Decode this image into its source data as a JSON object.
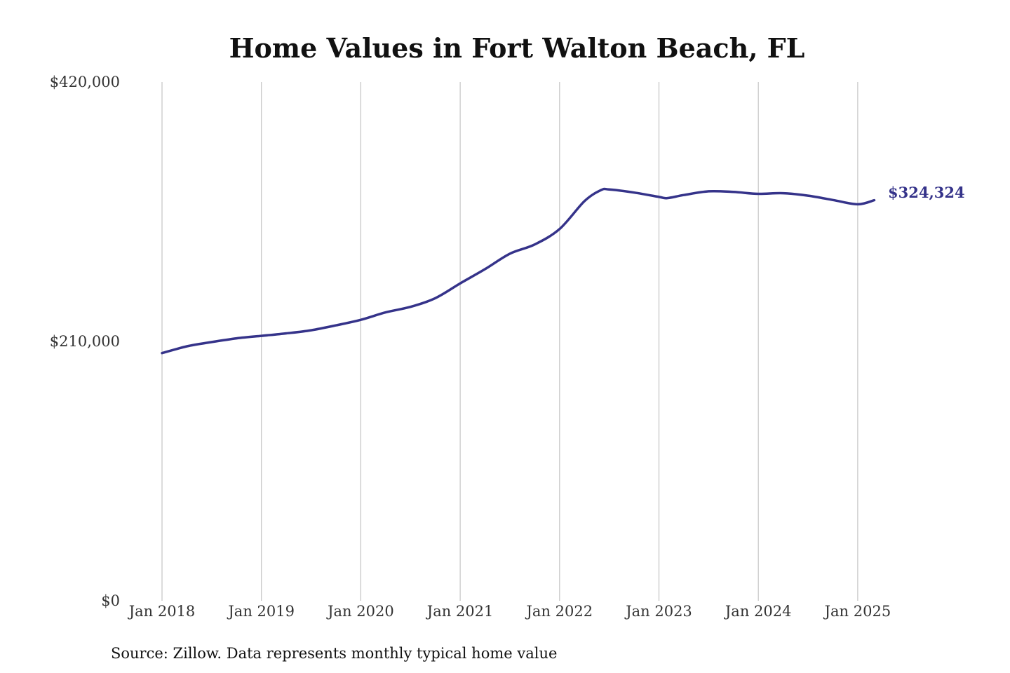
{
  "colors": {
    "line": "#35338a",
    "gridline": "#c4c4c4",
    "text": "#111111"
  },
  "chart_data": {
    "type": "line",
    "title": "Home Values in Fort Walton Beach, FL",
    "subtitle": "",
    "xlabel": "",
    "ylabel": "",
    "ylim": [
      0,
      420000
    ],
    "y_ticks": [
      0,
      210000,
      420000
    ],
    "y_tick_labels": [
      "$0",
      "$210,000",
      "$420,000"
    ],
    "x_ticks": [
      "2018-01",
      "2019-01",
      "2020-01",
      "2021-01",
      "2022-01",
      "2023-01",
      "2024-01",
      "2025-01"
    ],
    "x_tick_labels": [
      "Jan 2018",
      "Jan 2019",
      "Jan 2020",
      "Jan 2021",
      "Jan 2022",
      "Jan 2023",
      "Jan 2024",
      "Jan 2025"
    ],
    "x_range": [
      "2018-01",
      "2025-03"
    ],
    "grid": "vertical",
    "legend": "none",
    "series": [
      {
        "name": "",
        "x": [
          "2018-01",
          "2018-04",
          "2018-07",
          "2018-10",
          "2019-01",
          "2019-04",
          "2019-07",
          "2019-10",
          "2020-01",
          "2020-04",
          "2020-07",
          "2020-10",
          "2021-01",
          "2021-04",
          "2021-07",
          "2021-10",
          "2022-01",
          "2022-04",
          "2022-06",
          "2022-07",
          "2022-10",
          "2023-01",
          "2023-02",
          "2023-04",
          "2023-07",
          "2023-10",
          "2024-01",
          "2024-04",
          "2024-07",
          "2024-10",
          "2025-01",
          "2025-03"
        ],
        "values": [
          200500,
          206000,
          209500,
          212500,
          214500,
          216500,
          219000,
          223000,
          227500,
          233500,
          238000,
          245000,
          257000,
          268500,
          281000,
          288500,
          301000,
          323500,
          332500,
          333000,
          330500,
          327000,
          326000,
          328500,
          331500,
          331000,
          329500,
          330000,
          328000,
          324500,
          321000,
          324324
        ]
      }
    ],
    "end_label": "$324,324",
    "source": "Source: Zillow. Data represents monthly typical home value"
  }
}
